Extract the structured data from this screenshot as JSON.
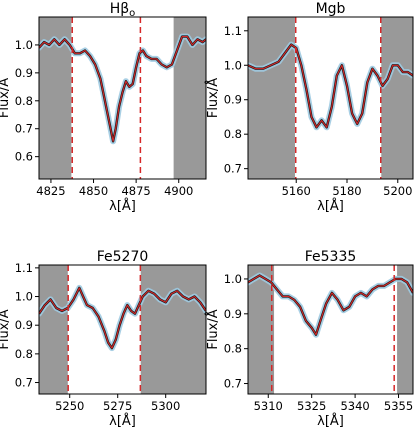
{
  "chart_data": [
    {
      "type": "line",
      "title": "Hβo",
      "title_main": "Hβ",
      "title_sub": "o",
      "xlabel": "λ[Å]",
      "ylabel": "Flux/Å",
      "xlim": [
        4818,
        4916
      ],
      "ylim": [
        0.52,
        1.1
      ],
      "xticks": [
        4825,
        4850,
        4875,
        4900
      ],
      "yticks": [
        0.6,
        0.7,
        0.8,
        0.9,
        1.0
      ],
      "ytick_labels": [
        "0.6",
        "0.7",
        "0.8",
        "0.9",
        "1.0"
      ],
      "shaded_x": [
        [
          4818,
          4837
        ],
        [
          4897,
          4916
        ]
      ],
      "dashed_lines": [
        4837.5,
        4877.5
      ],
      "series": [
        {
          "x": [
            4818,
            4821,
            4824,
            4827,
            4830,
            4833,
            4836,
            4839,
            4842,
            4845,
            4848,
            4851,
            4854,
            4856,
            4858,
            4860,
            4861.5,
            4863,
            4865,
            4867,
            4869,
            4871,
            4873,
            4875,
            4877,
            4879,
            4881,
            4884,
            4887,
            4890,
            4893,
            4896,
            4899,
            4902,
            4905,
            4908,
            4911,
            4914,
            4916
          ],
          "y": [
            0.99,
            1.01,
            1.0,
            1.02,
            1.0,
            1.02,
            1.0,
            0.97,
            0.97,
            0.98,
            0.96,
            0.93,
            0.88,
            0.82,
            0.76,
            0.7,
            0.655,
            0.7,
            0.78,
            0.83,
            0.87,
            0.85,
            0.86,
            0.92,
            0.97,
            0.98,
            0.96,
            0.95,
            0.95,
            0.93,
            0.92,
            0.93,
            0.98,
            1.03,
            1.03,
            1.0,
            1.02,
            1.01,
            1.02
          ]
        }
      ]
    },
    {
      "type": "line",
      "title": "Mgb",
      "xlabel": "λ[Å]",
      "ylabel": "Flux/Å",
      "xlim": [
        5141,
        5206
      ],
      "ylim": [
        0.67,
        1.14
      ],
      "xticks": [
        5160,
        5180,
        5200
      ],
      "yticks": [
        0.7,
        0.8,
        0.9,
        1.0,
        1.1
      ],
      "ytick_labels": [
        "0.7",
        "0.8",
        "0.9",
        "1.0",
        "1.1"
      ],
      "shaded_x": [
        [
          5141,
          5159.5
        ],
        [
          5193.5,
          5206
        ]
      ],
      "dashed_lines": [
        5159.8,
        5193.3
      ],
      "series": [
        {
          "x": [
            5141,
            5144,
            5147,
            5150,
            5153,
            5156,
            5158,
            5160,
            5162,
            5164,
            5166,
            5168,
            5170,
            5172,
            5174,
            5176,
            5178,
            5180,
            5182,
            5184,
            5186,
            5188,
            5190,
            5192,
            5194,
            5196,
            5198,
            5200,
            5202,
            5204,
            5206
          ],
          "y": [
            1.0,
            0.99,
            0.99,
            1.0,
            1.01,
            1.04,
            1.06,
            1.05,
            1.0,
            0.93,
            0.85,
            0.82,
            0.84,
            0.82,
            0.88,
            0.97,
            1.0,
            0.94,
            0.86,
            0.83,
            0.86,
            0.95,
            0.99,
            0.97,
            0.94,
            0.96,
            1.0,
            1.0,
            0.98,
            0.98,
            0.97
          ]
        }
      ]
    },
    {
      "type": "line",
      "title": "Fe5270",
      "xlabel": "λ[Å]",
      "ylabel": "Flux/Å",
      "xlim": [
        5234,
        5321
      ],
      "ylim": [
        0.66,
        1.11
      ],
      "xticks": [
        5250,
        5275,
        5300
      ],
      "yticks": [
        0.7,
        0.8,
        0.9,
        1.0,
        1.1
      ],
      "ytick_labels": [
        "0.7",
        "0.8",
        "0.9",
        "1.0",
        "1.1"
      ],
      "shaded_x": [
        [
          5234,
          5249
        ],
        [
          5287,
          5321
        ]
      ],
      "dashed_lines": [
        5249.2,
        5286.8
      ],
      "series": [
        {
          "x": [
            5234,
            5237,
            5240,
            5243,
            5246,
            5249,
            5252,
            5255,
            5257,
            5259,
            5262,
            5265,
            5268,
            5270,
            5272,
            5274,
            5276,
            5278,
            5280,
            5282,
            5284,
            5286,
            5288,
            5291,
            5294,
            5297,
            5300,
            5303,
            5306,
            5309,
            5312,
            5315,
            5318,
            5321
          ],
          "y": [
            0.94,
            0.97,
            0.99,
            0.96,
            0.95,
            0.96,
            0.99,
            1.03,
            1.0,
            0.97,
            0.96,
            0.93,
            0.88,
            0.84,
            0.82,
            0.85,
            0.9,
            0.94,
            0.97,
            0.95,
            0.94,
            0.97,
            1.0,
            1.02,
            1.01,
            0.99,
            0.98,
            1.01,
            1.02,
            1.0,
            0.99,
            1.0,
            0.98,
            0.95
          ]
        }
      ]
    },
    {
      "type": "line",
      "title": "Fe5335",
      "xlabel": "λ[Å]",
      "ylabel": "Flux/Å",
      "xlim": [
        5303,
        5360
      ],
      "ylim": [
        0.67,
        1.04
      ],
      "xticks": [
        5310,
        5325,
        5340,
        5355
      ],
      "yticks": [
        0.7,
        0.8,
        0.9,
        1.0
      ],
      "ytick_labels": [
        "0.7",
        "0.8",
        "0.9",
        "1.0"
      ],
      "shaded_x": [
        [
          5303,
          5312
        ],
        [
          5354.5,
          5360
        ]
      ],
      "dashed_lines": [
        5311.2,
        5353.5
      ],
      "series": [
        {
          "x": [
            5303,
            5305,
            5307,
            5309,
            5311,
            5313,
            5315,
            5317,
            5319,
            5321,
            5323,
            5325,
            5326.5,
            5328,
            5330,
            5332,
            5334,
            5336,
            5338,
            5340,
            5342,
            5344,
            5346,
            5348,
            5350,
            5352,
            5354,
            5356,
            5358,
            5360
          ],
          "y": [
            0.99,
            1.0,
            1.01,
            1.0,
            0.99,
            0.97,
            0.95,
            0.95,
            0.94,
            0.92,
            0.88,
            0.86,
            0.84,
            0.88,
            0.93,
            0.96,
            0.94,
            0.91,
            0.92,
            0.95,
            0.96,
            0.95,
            0.97,
            0.98,
            0.98,
            0.99,
            1.0,
            1.0,
            0.99,
            0.96
          ]
        }
      ]
    }
  ],
  "colors": {
    "shade": "#999999",
    "model_line": "#d62728",
    "data_line": "#1a1a1a",
    "error_band": "#9ecae1",
    "dashed": "#d62728"
  }
}
